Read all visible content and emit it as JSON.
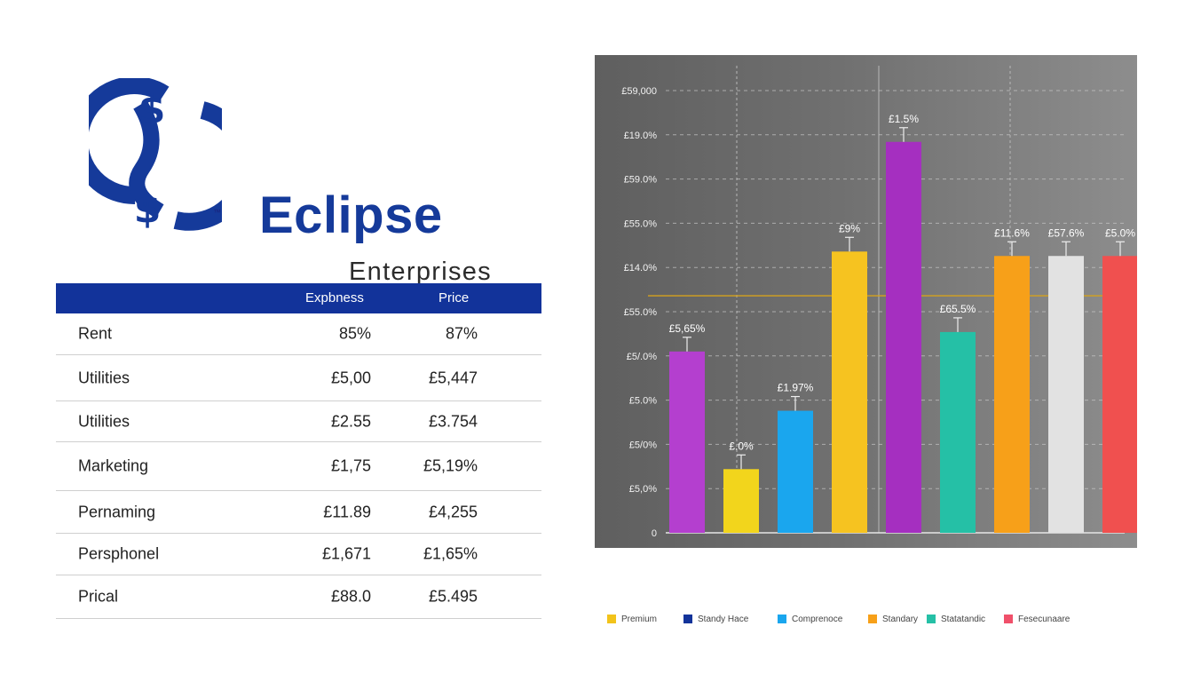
{
  "brand": {
    "name": "Eclipse",
    "subtitle": "Enterprises",
    "trademark": "™",
    "logo_symbol": "$",
    "color": "#153a9a"
  },
  "table": {
    "headers": {
      "label": "",
      "expenses": "Expbness",
      "price": "Price"
    },
    "rows": [
      {
        "label": "Rent",
        "expenses": "85%",
        "price": "87%"
      },
      {
        "label": "Utilities",
        "expenses": "£5,00",
        "price": "£5,447"
      },
      {
        "label": "Utilities",
        "expenses": "£2.55",
        "price": "£3.754"
      },
      {
        "label": "Marketing",
        "expenses": "£1,75",
        "price": "£5,19%"
      },
      {
        "label": "Pernaming",
        "expenses": "£11.89",
        "price": "£4,255"
      },
      {
        "label": "Persphonel",
        "expenses": "£1,671",
        "price": "£1,65%"
      },
      {
        "label": "Prical",
        "expenses": "£88.0",
        "price": "£5.495"
      }
    ]
  },
  "chart_data": {
    "type": "bar",
    "title": "",
    "xlabel": "",
    "ylabel": "",
    "grid": true,
    "background": "dark-gray",
    "legend_position": "bottom",
    "ylim": [
      0,
      5
    ],
    "y_tick_labels": [
      "0",
      "£5,0%",
      "£5/0%",
      "£5.0%",
      "£5/.0%",
      "£55.0%",
      "£14.0%",
      "£55.0%",
      "£59.0%",
      "£19.0%",
      "£59,000"
    ],
    "reference_line": {
      "value": 2.68,
      "color": "#d6a21c"
    },
    "bars": [
      {
        "value": 2.05,
        "label": "£5,65%",
        "color": "#b43fcf"
      },
      {
        "value": 0.72,
        "label": "£.0%",
        "color": "#f2d51c"
      },
      {
        "value": 1.38,
        "label": "£1.97%",
        "color": "#1aa6ee"
      },
      {
        "value": 3.18,
        "label": "£9%",
        "color": "#f6c320"
      },
      {
        "value": 4.42,
        "label": "£1.5%",
        "color": "#a52fc0"
      },
      {
        "value": 2.27,
        "label": "£65.5%",
        "color": "#25c0a6"
      },
      {
        "value": 3.13,
        "label": "£11.6%",
        "color": "#f7a019"
      },
      {
        "value": 3.13,
        "label": "£57.6%",
        "color": "#e2e2e2"
      },
      {
        "value": 3.13,
        "label": "£5.0%",
        "color": "#f0504f"
      }
    ],
    "legend": [
      {
        "label": "Premium",
        "color": "#f2c31b"
      },
      {
        "label": "Standy Hace",
        "color": "#12339a"
      },
      {
        "label": "Comprenoce",
        "color": "#1aa6ee"
      },
      {
        "label": "Standary",
        "color": "#f7a019"
      },
      {
        "label": "Statatandic",
        "color": "#25c0a6"
      },
      {
        "label": "Fesecunaare",
        "color": "#f0506a"
      }
    ]
  }
}
